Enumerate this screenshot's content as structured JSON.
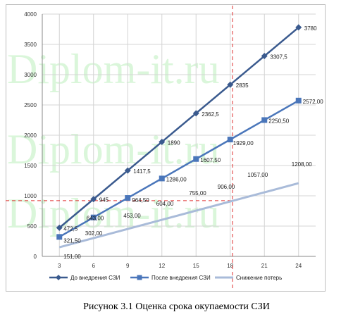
{
  "caption": "Рисунок 3.1 Оценка срока окупаемости СЗИ",
  "watermark": "Diplom-it.ru",
  "colors": {
    "series1": "#3a5a8e",
    "series2": "#4a76ba",
    "series3": "#a9bbd9",
    "dashed": "#e03030"
  },
  "chart_data": {
    "type": "line",
    "x": [
      3,
      6,
      9,
      12,
      15,
      18,
      21,
      24
    ],
    "xlim": [
      1.5,
      25.5
    ],
    "ylim": [
      0,
      4000
    ],
    "yticks": [
      0,
      500,
      1000,
      1500,
      2000,
      2500,
      3000,
      3500,
      4000
    ],
    "grid": true,
    "legend": "bottom",
    "series": [
      {
        "name": "До внедрения СЗИ",
        "marker": "diamond",
        "values": [
          472.5,
          945,
          1417.5,
          1890,
          2362.5,
          2835,
          3307.5,
          3780
        ],
        "labels": [
          "472,5",
          "945",
          "1417,5",
          "1890",
          "2362,5",
          "2835",
          "3307,5",
          "3780"
        ]
      },
      {
        "name": "После внедрения СЗИ",
        "marker": "square",
        "values": [
          321.5,
          643,
          964.5,
          1286,
          1607.5,
          1929,
          2250.5,
          2572
        ],
        "labels": [
          "321,50",
          "643,00",
          "964,50",
          "1286,00",
          "1607,50",
          "1929,00",
          "2250,50",
          "2572,00"
        ]
      },
      {
        "name": "Снижение потерь",
        "marker": "none",
        "values": [
          151,
          302,
          453,
          604,
          755,
          906,
          1057,
          1208
        ],
        "labels": [
          "151,00",
          "302,00",
          "453,00",
          "604,00",
          "755,00",
          "906,00",
          "1057,00",
          "1208,00"
        ]
      }
    ],
    "reference_lines": {
      "vertical_x": 18.2,
      "horizontal_y": 920
    }
  }
}
